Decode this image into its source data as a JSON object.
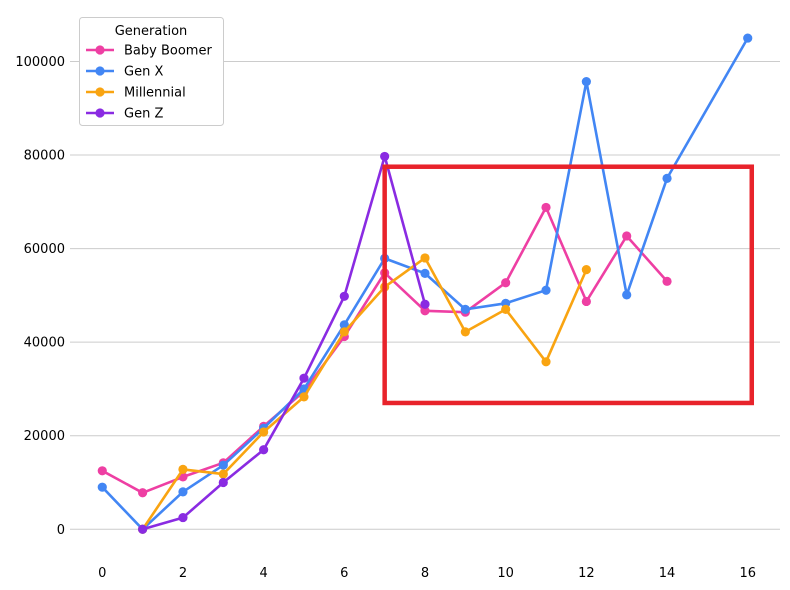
{
  "chart_data": {
    "type": "line",
    "title": "",
    "xlabel": "",
    "ylabel": "",
    "xlim": [
      -0.8,
      16.8
    ],
    "ylim": [
      -5500,
      111000
    ],
    "grid": "y",
    "x_ticks": [
      0,
      2,
      4,
      6,
      8,
      10,
      12,
      14,
      16
    ],
    "y_ticks": [
      0,
      20000,
      40000,
      60000,
      80000,
      100000
    ],
    "legend": {
      "title": "Generation",
      "placement": "top-left"
    },
    "highlight_box": {
      "x_range": [
        7,
        16.1
      ],
      "y_range": [
        27000,
        77500
      ],
      "color": "#e8232b"
    },
    "series": [
      {
        "name": "Baby Boomer",
        "color": "#ee3fa3",
        "x": [
          0,
          1,
          2,
          3,
          4,
          5,
          6,
          7,
          8,
          9,
          10,
          11,
          12,
          13,
          14
        ],
        "values": [
          12500,
          7800,
          11200,
          14200,
          22000,
          29500,
          41200,
          54800,
          46700,
          46400,
          52700,
          68800,
          48700,
          62700,
          53000
        ]
      },
      {
        "name": "Gen X",
        "color": "#4286f4",
        "x": [
          0,
          1,
          2,
          3,
          4,
          5,
          6,
          7,
          8,
          9,
          10,
          11,
          12,
          13,
          14,
          16
        ],
        "values": [
          9000,
          0,
          8000,
          13700,
          21600,
          30000,
          43700,
          57900,
          54700,
          47000,
          48300,
          51100,
          95700,
          50100,
          75000,
          105000
        ]
      },
      {
        "name": "Millennial",
        "color": "#f9a411",
        "x": [
          1,
          2,
          3,
          4,
          5,
          6,
          7,
          8,
          9,
          10,
          11,
          12
        ],
        "values": [
          0,
          12800,
          11800,
          20800,
          28300,
          42200,
          51800,
          58000,
          42200,
          47000,
          35800,
          55500
        ]
      },
      {
        "name": "Gen Z",
        "color": "#8a2be2",
        "x": [
          1,
          2,
          3,
          4,
          5,
          6,
          7,
          8
        ],
        "values": [
          0,
          2500,
          10000,
          17000,
          32300,
          49800,
          79700,
          48100
        ]
      }
    ]
  }
}
